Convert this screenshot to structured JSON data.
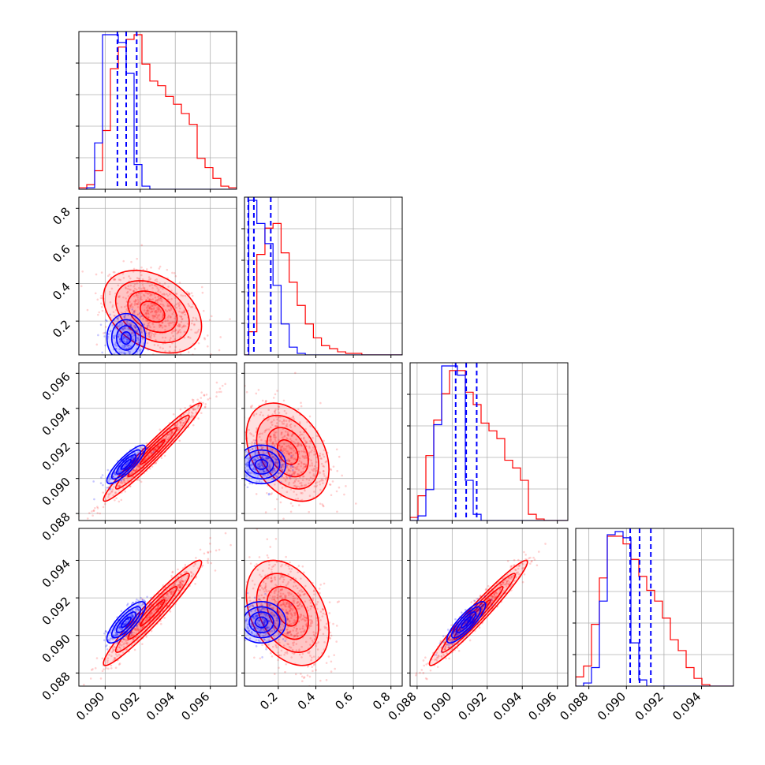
{
  "chart_data": {
    "type": "corner",
    "colors": {
      "series_a": "#0000ff",
      "series_b": "#ff0000",
      "grid": "#b0b0b0"
    },
    "grid": true,
    "title": "",
    "parameters": [
      {
        "label": "",
        "range": [
          0.0885,
          0.0975
        ],
        "ticks": [
          0.09,
          0.092,
          0.094,
          0.096
        ],
        "tick_labels": [
          "0.090",
          "0.092",
          "0.094",
          "0.096"
        ]
      },
      {
        "label": "",
        "range": [
          0.02,
          0.86
        ],
        "ticks": [
          0.2,
          0.4,
          0.6,
          0.8
        ],
        "tick_labels": [
          "0.2",
          "0.4",
          "0.6",
          "0.8"
        ]
      },
      {
        "label": "",
        "range": [
          0.0876,
          0.0966
        ],
        "ticks": [
          0.088,
          0.09,
          0.092,
          0.094,
          0.096
        ],
        "tick_labels": [
          "0.088",
          "0.090",
          "0.092",
          "0.094",
          "0.096"
        ]
      },
      {
        "label": "",
        "range": [
          0.0873,
          0.0957
        ],
        "ticks": [
          0.088,
          0.09,
          0.092,
          0.094
        ],
        "tick_labels": [
          "0.088",
          "0.090",
          "0.092",
          "0.094"
        ]
      }
    ],
    "series": [
      {
        "name": "",
        "color": "#0000ff",
        "means": [
          0.0912,
          0.11,
          0.0908,
          0.0907
        ],
        "sds": [
          0.00055,
          0.065,
          0.00055,
          0.00055
        ],
        "quantiles": [
          [
            0.0907,
            0.0912,
            0.0918
          ],
          [
            0.04,
            0.07,
            0.16
          ],
          [
            0.0902,
            0.0908,
            0.0914
          ],
          [
            0.0902,
            0.0907,
            0.0913
          ]
        ],
        "correlations": {
          "0-1": 0.0,
          "0-2": 0.85,
          "0-3": 0.8,
          "1-2": 0.0,
          "1-3": 0.0,
          "2-3": 0.85
        }
      },
      {
        "name": "",
        "color": "#ff0000",
        "means": [
          0.0927,
          0.25,
          0.0915,
          0.0912
        ],
        "sds": [
          0.0014,
          0.11,
          0.0014,
          0.0014
        ],
        "correlations": {
          "0-1": -0.35,
          "0-2": 0.97,
          "0-3": 0.96,
          "1-2": -0.35,
          "1-3": -0.35,
          "2-3": 0.97
        }
      }
    ],
    "histograms": [
      {
        "bins": [
          0.0885,
          0.0975,
          20
        ],
        "series_b": [
          0.01,
          0.03,
          0.12,
          0.38,
          0.78,
          0.92,
          0.97,
          1.0,
          0.81,
          0.7,
          0.67,
          0.6,
          0.55,
          0.49,
          0.42,
          0.2,
          0.14,
          0.07,
          0.02,
          0.01
        ],
        "series_a": [
          0.0,
          0.01,
          0.3,
          1.0,
          1.0,
          0.95,
          0.75,
          0.16,
          0.02,
          0.0,
          0.0,
          0.0,
          0.0,
          0.0,
          0.0,
          0.0,
          0.0,
          0.0,
          0.0,
          0.0
        ]
      },
      {
        "bins": [
          0.0,
          0.86,
          20
        ],
        "series_b": [
          0.0,
          0.15,
          0.65,
          0.82,
          0.85,
          0.66,
          0.47,
          0.32,
          0.2,
          0.11,
          0.06,
          0.04,
          0.02,
          0.01,
          0.01,
          0.0,
          0.0,
          0.0,
          0.0,
          0.0
        ],
        "series_a": [
          0.0,
          1.0,
          0.85,
          0.72,
          0.45,
          0.2,
          0.05,
          0.01,
          0.0,
          0.0,
          0.0,
          0.0,
          0.0,
          0.0,
          0.0,
          0.0,
          0.0,
          0.0,
          0.0,
          0.0
        ]
      },
      {
        "bins": [
          0.0876,
          0.0966,
          20
        ],
        "series_b": [
          0.02,
          0.16,
          0.42,
          0.65,
          0.82,
          0.97,
          0.97,
          0.83,
          0.75,
          0.63,
          0.58,
          0.53,
          0.39,
          0.34,
          0.26,
          0.04,
          0.01,
          0.0,
          0.0,
          0.0
        ],
        "series_a": [
          0.0,
          0.03,
          0.2,
          0.62,
          1.0,
          1.0,
          0.94,
          0.26,
          0.04,
          0.0,
          0.0,
          0.0,
          0.0,
          0.0,
          0.0,
          0.0,
          0.0,
          0.0,
          0.0,
          0.0
        ]
      },
      {
        "bins": [
          0.0873,
          0.0957,
          20
        ],
        "series_b": [
          0.06,
          0.13,
          0.4,
          0.7,
          0.97,
          0.97,
          0.92,
          0.82,
          0.71,
          0.62,
          0.55,
          0.44,
          0.3,
          0.23,
          0.12,
          0.05,
          0.01,
          0.0,
          0.0,
          0.0
        ],
        "series_a": [
          0.0,
          0.02,
          0.12,
          0.55,
          0.98,
          1.0,
          0.96,
          0.28,
          0.04,
          0.0,
          0.0,
          0.0,
          0.0,
          0.0,
          0.0,
          0.0,
          0.0,
          0.0,
          0.0,
          0.0
        ]
      }
    ]
  }
}
